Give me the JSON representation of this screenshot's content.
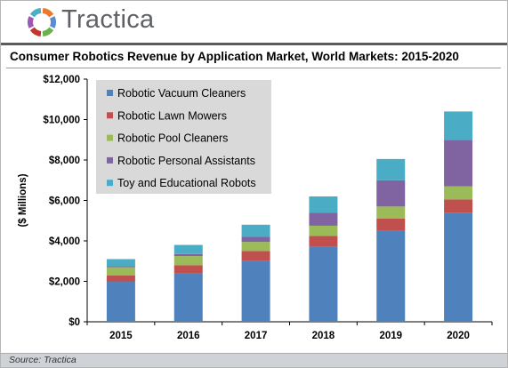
{
  "header": {
    "brand": "Tractica",
    "logo_colors": [
      "#e9792c",
      "#5b8bd0",
      "#6ab04c",
      "#c0392b",
      "#9b59b6",
      "#4ab0c8"
    ]
  },
  "footer": {
    "source": "Source: Tractica"
  },
  "chart_data": {
    "type": "bar",
    "stacked": true,
    "title": "Consumer Robotics Revenue by Application Market, World Markets: 2015-2020",
    "ylabel": "($ Millions)",
    "xlabel": "",
    "categories": [
      "2015",
      "2016",
      "2017",
      "2018",
      "2019",
      "2020"
    ],
    "ylim": [
      0,
      12000
    ],
    "yticks": [
      0,
      2000,
      4000,
      6000,
      8000,
      10000,
      12000
    ],
    "ytick_labels": [
      "$0",
      "$2,000",
      "$4,000",
      "$6,000",
      "$8,000",
      "$10,000",
      "$12,000"
    ],
    "grid": false,
    "legend": "top-left",
    "series": [
      {
        "name": "Robotic Vacuum Cleaners",
        "color": "#4f81bd",
        "values": [
          2000,
          2400,
          3000,
          3700,
          4500,
          5400
        ]
      },
      {
        "name": "Robotic Lawn Mowers",
        "color": "#c0504d",
        "values": [
          300,
          400,
          500,
          550,
          600,
          650
        ]
      },
      {
        "name": "Robotic Pool Cleaners",
        "color": "#9bbb59",
        "values": [
          400,
          450,
          450,
          500,
          600,
          650
        ]
      },
      {
        "name": "Robotic Personal Assistants",
        "color": "#8064a2",
        "values": [
          50,
          100,
          250,
          650,
          1300,
          2300
        ]
      },
      {
        "name": "Toy and Educational Robots",
        "color": "#4bacc6",
        "values": [
          350,
          450,
          600,
          800,
          1050,
          1400
        ]
      }
    ]
  }
}
